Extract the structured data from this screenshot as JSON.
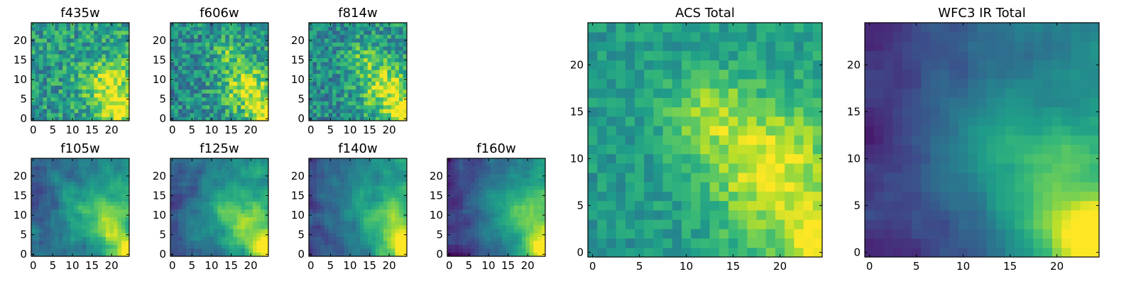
{
  "colormap": {
    "name": "viridis",
    "stops": [
      "#440154",
      "#482878",
      "#3e4989",
      "#31688e",
      "#26828e",
      "#1f9e89",
      "#35b779",
      "#6ece58",
      "#b5de2b",
      "#fde725"
    ]
  },
  "chart_data": [
    {
      "id": "f435w",
      "type": "heatmap",
      "title": "f435w",
      "x_range": [
        0,
        24
      ],
      "y_range": [
        0,
        24
      ],
      "grid_size": 25,
      "xticks": [
        "0",
        "5",
        "10",
        "15",
        "20"
      ],
      "yticks": [
        "0",
        "5",
        "10",
        "15",
        "20"
      ],
      "seed": 11,
      "noise": 0.42,
      "smooth": 0,
      "base": 0.55,
      "gradient": 0.05,
      "blobs": [
        {
          "x": 19,
          "y": 9,
          "r": 4.5,
          "amp": 0.35
        },
        {
          "x": 22,
          "y": 2,
          "r": 3,
          "amp": 0.4
        }
      ]
    },
    {
      "id": "f606w",
      "type": "heatmap",
      "title": "f606w",
      "x_range": [
        0,
        24
      ],
      "y_range": [
        0,
        24
      ],
      "grid_size": 25,
      "xticks": [
        "0",
        "5",
        "10",
        "15",
        "20"
      ],
      "yticks": [
        "0",
        "5",
        "10",
        "15",
        "20"
      ],
      "seed": 23,
      "noise": 0.42,
      "smooth": 0,
      "base": 0.5,
      "gradient": 0.05,
      "blobs": [
        {
          "x": 19,
          "y": 8,
          "r": 4.5,
          "amp": 0.4
        },
        {
          "x": 14,
          "y": 17,
          "r": 3,
          "amp": 0.2
        },
        {
          "x": 24,
          "y": 1,
          "r": 3,
          "amp": 0.4
        }
      ]
    },
    {
      "id": "f814w",
      "type": "heatmap",
      "title": "f814w",
      "x_range": [
        0,
        24
      ],
      "y_range": [
        0,
        24
      ],
      "grid_size": 25,
      "xticks": [
        "0",
        "5",
        "10",
        "15",
        "20"
      ],
      "yticks": [
        "0",
        "5",
        "10",
        "15",
        "20"
      ],
      "seed": 37,
      "noise": 0.4,
      "smooth": 0,
      "base": 0.5,
      "gradient": 0.06,
      "blobs": [
        {
          "x": 19,
          "y": 8,
          "r": 4.5,
          "amp": 0.4
        },
        {
          "x": 13,
          "y": 16,
          "r": 3,
          "amp": 0.2
        },
        {
          "x": 24,
          "y": 1,
          "r": 3,
          "amp": 0.45
        }
      ]
    },
    {
      "id": "f105w",
      "type": "heatmap",
      "title": "f105w",
      "x_range": [
        0,
        24
      ],
      "y_range": [
        0,
        24
      ],
      "grid_size": 25,
      "xticks": [
        "0",
        "5",
        "10",
        "15",
        "20"
      ],
      "yticks": [
        "0",
        "5",
        "10",
        "15",
        "20"
      ],
      "seed": 51,
      "noise": 0.3,
      "smooth": 1,
      "base": 0.42,
      "gradient": 0.22,
      "blobs": [
        {
          "x": 19,
          "y": 8,
          "r": 5,
          "amp": 0.3
        },
        {
          "x": 12,
          "y": 12,
          "r": 4,
          "amp": 0.15
        },
        {
          "x": 24,
          "y": 1,
          "r": 3,
          "amp": 0.45
        }
      ]
    },
    {
      "id": "f125w",
      "type": "heatmap",
      "title": "f125w",
      "x_range": [
        0,
        24
      ],
      "y_range": [
        0,
        24
      ],
      "grid_size": 25,
      "xticks": [
        "0",
        "5",
        "10",
        "15",
        "20"
      ],
      "yticks": [
        "0",
        "5",
        "10",
        "15",
        "20"
      ],
      "seed": 67,
      "noise": 0.28,
      "smooth": 1,
      "base": 0.42,
      "gradient": 0.26,
      "blobs": [
        {
          "x": 19,
          "y": 8,
          "r": 5,
          "amp": 0.3
        },
        {
          "x": 12,
          "y": 13,
          "r": 4,
          "amp": 0.15
        },
        {
          "x": 24,
          "y": 1,
          "r": 3,
          "amp": 0.5
        }
      ]
    },
    {
      "id": "f140w",
      "type": "heatmap",
      "title": "f140w",
      "x_range": [
        0,
        24
      ],
      "y_range": [
        0,
        24
      ],
      "grid_size": 25,
      "xticks": [
        "0",
        "5",
        "10",
        "15",
        "20"
      ],
      "yticks": [
        "0",
        "5",
        "10",
        "15",
        "20"
      ],
      "seed": 79,
      "noise": 0.26,
      "smooth": 1,
      "base": 0.4,
      "gradient": 0.3,
      "blobs": [
        {
          "x": 20,
          "y": 8,
          "r": 5,
          "amp": 0.3
        },
        {
          "x": 11,
          "y": 14,
          "r": 4,
          "amp": 0.12
        },
        {
          "x": 24,
          "y": 1,
          "r": 3,
          "amp": 0.5
        }
      ]
    },
    {
      "id": "f160w",
      "type": "heatmap",
      "title": "f160w",
      "x_range": [
        0,
        24
      ],
      "y_range": [
        0,
        24
      ],
      "grid_size": 25,
      "xticks": [
        "0",
        "5",
        "10",
        "15",
        "20"
      ],
      "yticks": [
        "0",
        "5",
        "10",
        "15",
        "20"
      ],
      "seed": 97,
      "noise": 0.22,
      "smooth": 1,
      "base": 0.35,
      "gradient": 0.38,
      "blobs": [
        {
          "x": 20,
          "y": 9,
          "r": 5,
          "amp": 0.28
        },
        {
          "x": 12,
          "y": 14,
          "r": 4,
          "amp": 0.12
        },
        {
          "x": 24,
          "y": 1,
          "r": 3,
          "amp": 0.55
        }
      ]
    },
    {
      "id": "acs-total",
      "type": "heatmap",
      "title": "ACS Total",
      "x_range": [
        0,
        24
      ],
      "y_range": [
        0,
        24
      ],
      "grid_size": 25,
      "xticks": [
        "0",
        "5",
        "10",
        "15",
        "20"
      ],
      "yticks": [
        "0",
        "5",
        "10",
        "15",
        "20"
      ],
      "seed": 131,
      "noise": 0.22,
      "smooth": 0,
      "base": 0.55,
      "gradient": 0.04,
      "blobs": [
        {
          "x": 19,
          "y": 9,
          "r": 5,
          "amp": 0.4
        },
        {
          "x": 12,
          "y": 15,
          "r": 3,
          "amp": 0.25
        },
        {
          "x": 24,
          "y": 1,
          "r": 3,
          "amp": 0.4
        }
      ]
    },
    {
      "id": "wfc3-ir-total",
      "type": "heatmap",
      "title": "WFC3 IR Total",
      "x_range": [
        0,
        24
      ],
      "y_range": [
        0,
        24
      ],
      "grid_size": 25,
      "xticks": [
        "0",
        "5",
        "10",
        "15",
        "20"
      ],
      "yticks": [
        "0",
        "5",
        "10",
        "15",
        "20"
      ],
      "seed": 157,
      "noise": 0.16,
      "smooth": 1,
      "base": 0.32,
      "gradient": 0.34,
      "blobs": [
        {
          "x": 19,
          "y": 8,
          "r": 5,
          "amp": 0.28
        },
        {
          "x": 12,
          "y": 12,
          "r": 4,
          "amp": 0.15
        },
        {
          "x": 24,
          "y": 1,
          "r": 3.5,
          "amp": 0.6
        }
      ]
    }
  ]
}
